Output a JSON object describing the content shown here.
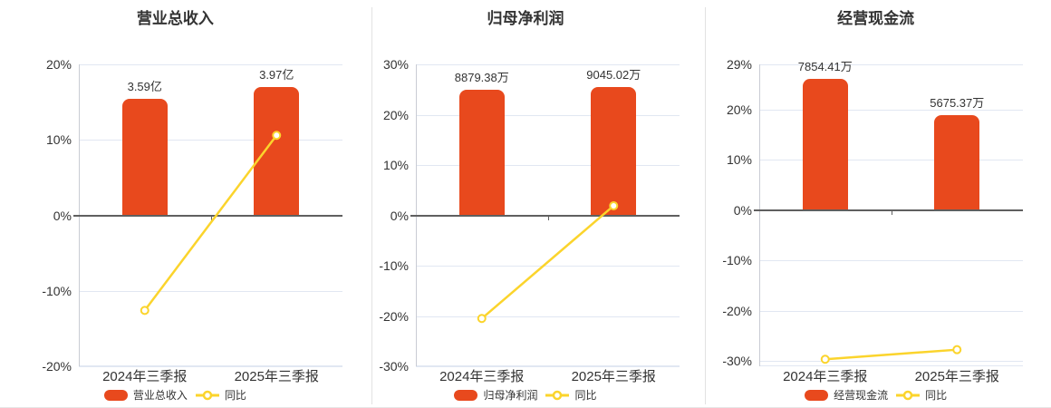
{
  "colors": {
    "bar": "#e8491d",
    "line": "#fbd42c",
    "marker_fill": "#ffffff",
    "grid": "#e1e7f2",
    "zero_line": "#5f5f5f",
    "axis_line": "#c9ccd4",
    "divider": "#e2e2e2",
    "text": "#333333"
  },
  "chart_data": [
    {
      "type": "bar+line",
      "title": "营业总收入",
      "categories": [
        "2024年三季报",
        "2025年三季报"
      ],
      "bar_series": {
        "name": "营业总收入",
        "value_labels": [
          "3.59亿",
          "3.97亿"
        ],
        "display_height_axis_pct": [
          15.4,
          17.0
        ]
      },
      "line_series": {
        "name": "同比",
        "values_pct": [
          -12.6,
          10.6
        ]
      },
      "y_axis": {
        "min": -20,
        "max": 20,
        "ticks": [
          20,
          10,
          0,
          -10,
          -20
        ],
        "tick_labels": [
          "20%",
          "10%",
          "0%",
          "-10%",
          "-20%"
        ],
        "unit": "%"
      },
      "legend": {
        "position": "bottom",
        "items": [
          "营业总收入",
          "同比"
        ]
      },
      "grid": true
    },
    {
      "type": "bar+line",
      "title": "归母净利润",
      "categories": [
        "2024年三季报",
        "2025年三季报"
      ],
      "bar_series": {
        "name": "归母净利润",
        "value_labels": [
          "8879.38万",
          "9045.02万"
        ],
        "display_height_axis_pct": [
          25.0,
          25.5
        ]
      },
      "line_series": {
        "name": "同比",
        "values_pct": [
          -20.5,
          1.9
        ]
      },
      "y_axis": {
        "min": -30,
        "max": 30,
        "ticks": [
          30,
          20,
          10,
          0,
          -10,
          -20,
          -30
        ],
        "tick_labels": [
          "30%",
          "20%",
          "10%",
          "0%",
          "-10%",
          "-20%",
          "-30%"
        ],
        "unit": "%"
      },
      "legend": {
        "position": "bottom",
        "items": [
          "归母净利润",
          "同比"
        ]
      },
      "grid": true
    },
    {
      "type": "bar+line",
      "title": "经营现金流",
      "categories": [
        "2024年三季报",
        "2025年三季报"
      ],
      "bar_series": {
        "name": "经营现金流",
        "value_labels": [
          "7854.41万",
          "5675.37万"
        ],
        "display_height_axis_pct": [
          26.1,
          18.9
        ]
      },
      "line_series": {
        "name": "同比",
        "values_pct": [
          -29.6,
          -27.7
        ]
      },
      "y_axis": {
        "min": -31,
        "max": 29,
        "ticks": [
          29,
          20,
          10,
          0,
          -10,
          -20,
          -30
        ],
        "tick_labels": [
          "29%",
          "20%",
          "10%",
          "0%",
          "-10%",
          "-20%",
          "-30%"
        ],
        "unit": "%"
      },
      "legend": {
        "position": "bottom",
        "items": [
          "经营现金流",
          "同比"
        ]
      },
      "grid": true
    }
  ]
}
